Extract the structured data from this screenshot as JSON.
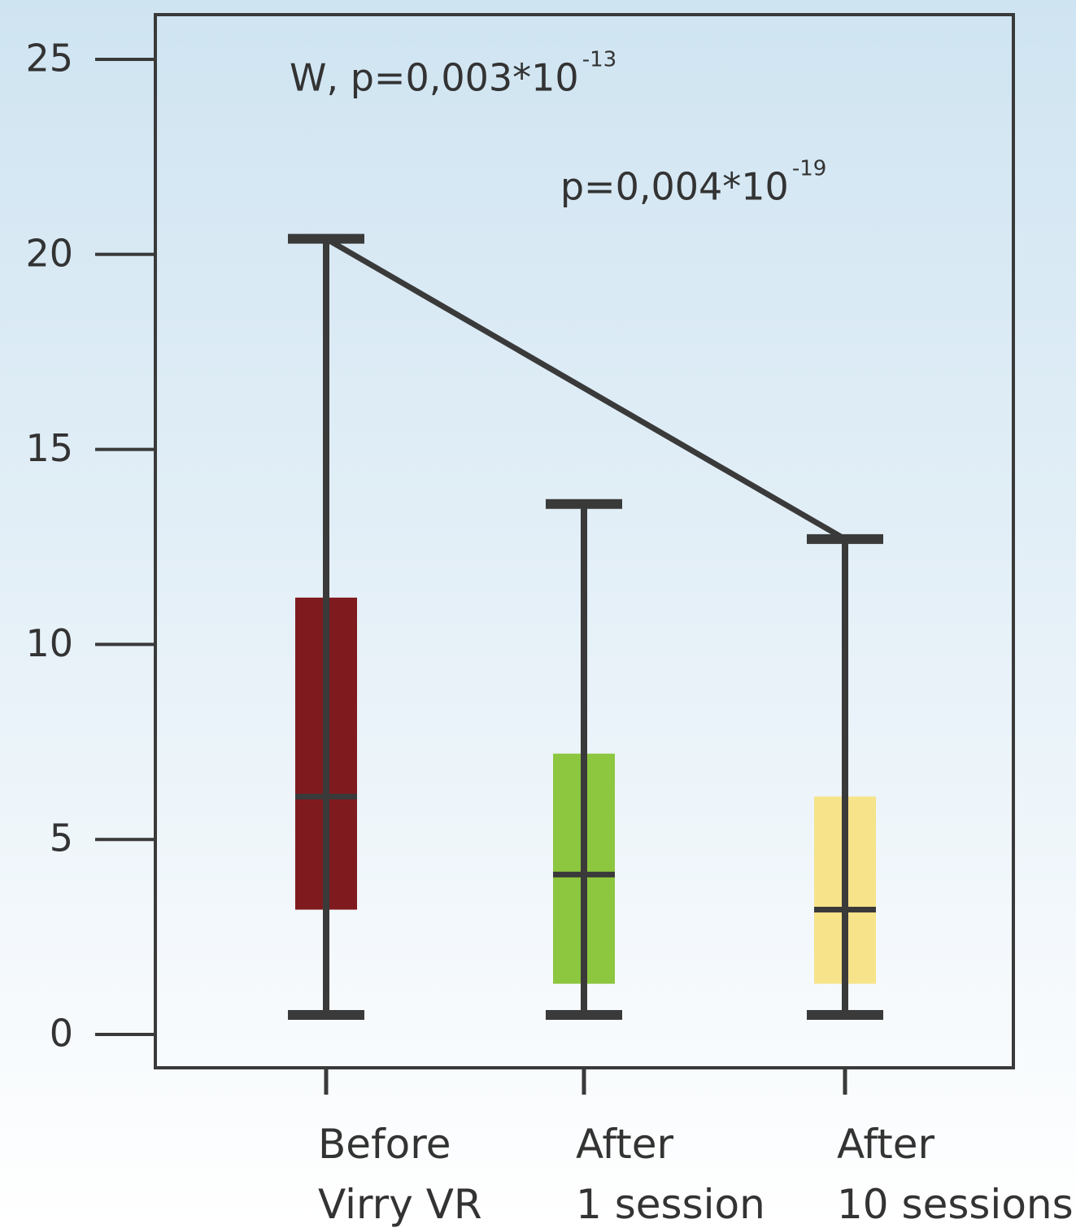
{
  "chart_data": {
    "type": "boxplot",
    "title": "",
    "xlabel": "",
    "ylabel": "",
    "ylim": [
      0,
      25
    ],
    "yticks": [
      0,
      5,
      10,
      15,
      20,
      25
    ],
    "grid": false,
    "legend": "none",
    "categories": [
      {
        "line1": "Before",
        "line2": "Virry VR"
      },
      {
        "line1": "After",
        "line2": "1 session"
      },
      {
        "line1": "After",
        "line2": "10 sessions"
      }
    ],
    "boxes": [
      {
        "min": 0.5,
        "q1": 3.2,
        "median": 6.1,
        "q3": 11.2,
        "max": 20.4,
        "color": "#7f1a1e"
      },
      {
        "min": 0.5,
        "q1": 1.3,
        "median": 4.1,
        "q3": 7.2,
        "max": 13.6,
        "color": "#8dc63f"
      },
      {
        "min": 0.5,
        "q1": 1.3,
        "median": 3.2,
        "q3": 6.1,
        "max": 12.7,
        "color": "#f7e38a"
      }
    ],
    "trend_line": {
      "from_category": 0,
      "from_value": 20.4,
      "to_category": 2,
      "to_value": 12.7
    },
    "annotations": [
      {
        "text": "W, p=0,003*10",
        "exponent": "-13",
        "value": 24.2,
        "category_pos": 0.0
      },
      {
        "text": "p=0,004*10",
        "exponent": "-19",
        "value": 21.4,
        "category_pos": 1.05
      }
    ]
  }
}
